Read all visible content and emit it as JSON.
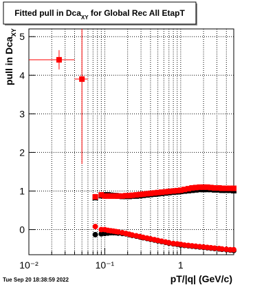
{
  "chart_data": {
    "type": "scatter",
    "title_parts": [
      "Fitted pull in Dca",
      "XY",
      " for Global Rec All EtapT"
    ],
    "y_label_parts": [
      "pull in Dca",
      "XY"
    ],
    "x_label": "pT/|q| (GeV/c)",
    "timestamp": "Tue Sep 20 18:38:59 2022",
    "log_x": true,
    "grid": true,
    "xlim": [
      0.01,
      5
    ],
    "ylim": [
      -0.65,
      5.2
    ],
    "xticks": [
      {
        "value": 0.01,
        "label": "10⁻²"
      },
      {
        "value": 0.1,
        "label": "10⁻¹"
      },
      1
    ],
    "xminor": [
      0.02,
      0.03,
      0.04,
      0.05,
      0.06,
      0.07,
      0.08,
      0.09,
      0.2,
      0.3,
      0.4,
      0.5,
      0.6,
      0.7,
      0.8,
      0.9,
      2,
      3,
      4
    ],
    "yticks": [
      0,
      1,
      2,
      3,
      4,
      5
    ],
    "x": [
      0.075,
      0.09,
      0.1,
      0.11,
      0.12,
      0.13,
      0.14,
      0.15,
      0.17,
      0.19,
      0.21,
      0.23,
      0.26,
      0.29,
      0.32,
      0.36,
      0.4,
      0.45,
      0.5,
      0.56,
      0.63,
      0.7,
      0.8,
      0.9,
      1.0,
      1.12,
      1.26,
      1.41,
      1.58,
      1.78,
      2.0,
      2.24,
      2.5,
      2.8,
      3.2,
      3.5,
      4.0,
      4.5,
      5.0
    ],
    "series": [
      {
        "color": "#000000",
        "marker": "square",
        "values": [
          0.83,
          0.88,
          0.9,
          0.9,
          0.89,
          0.88,
          0.88,
          0.87,
          0.86,
          0.86,
          0.86,
          0.87,
          0.87,
          0.88,
          0.89,
          0.9,
          0.91,
          0.92,
          0.93,
          0.94,
          0.95,
          0.96,
          0.97,
          0.98,
          0.99,
          1.0,
          1.01,
          1.02,
          1.03,
          1.04,
          1.04,
          1.04,
          1.04,
          1.03,
          1.03,
          1.02,
          1.02,
          1.02,
          1.01
        ]
      },
      {
        "color": "#000000",
        "marker": "circle",
        "values": [
          -0.13,
          -0.11,
          -0.1,
          -0.09,
          -0.08,
          -0.08,
          -0.08,
          -0.09,
          -0.1,
          -0.11,
          -0.13,
          -0.15,
          -0.17,
          -0.19,
          -0.21,
          -0.23,
          -0.25,
          -0.27,
          -0.29,
          -0.31,
          -0.33,
          -0.35,
          -0.37,
          -0.38,
          -0.4,
          -0.41,
          -0.42,
          -0.43,
          -0.44,
          -0.45,
          -0.46,
          -0.47,
          -0.48,
          -0.49,
          -0.5,
          -0.51,
          -0.52,
          -0.53,
          -0.54
        ]
      },
      {
        "color": "#ff0000",
        "marker": "square",
        "values": [
          0.85,
          0.9,
          0.87,
          0.87,
          0.87,
          0.87,
          0.87,
          0.87,
          0.87,
          0.88,
          0.88,
          0.89,
          0.9,
          0.91,
          0.92,
          0.93,
          0.94,
          0.95,
          0.96,
          0.97,
          0.98,
          0.99,
          1.0,
          1.01,
          1.02,
          1.04,
          1.06,
          1.08,
          1.09,
          1.1,
          1.1,
          1.1,
          1.09,
          1.08,
          1.08,
          1.07,
          1.07,
          1.07,
          1.07
        ]
      },
      {
        "color": "#ff0000",
        "marker": "circle",
        "values": [
          0.08,
          0.0,
          0.0,
          -0.02,
          -0.03,
          -0.04,
          -0.05,
          -0.06,
          -0.08,
          -0.1,
          -0.12,
          -0.14,
          -0.16,
          -0.18,
          -0.2,
          -0.22,
          -0.24,
          -0.26,
          -0.28,
          -0.3,
          -0.32,
          -0.34,
          -0.36,
          -0.37,
          -0.38,
          -0.4,
          -0.41,
          -0.42,
          -0.43,
          -0.44,
          -0.45,
          -0.46,
          -0.47,
          -0.48,
          -0.49,
          -0.5,
          -0.51,
          -0.52,
          -0.52
        ]
      },
      {
        "color": "#ff0000",
        "marker": "square",
        "x": [
          0.025,
          0.05
        ],
        "x_errors": [
          0.015,
          0.01
        ],
        "values": [
          4.4,
          3.9
        ],
        "y_errors": [
          0.25,
          2.2
        ]
      }
    ]
  }
}
